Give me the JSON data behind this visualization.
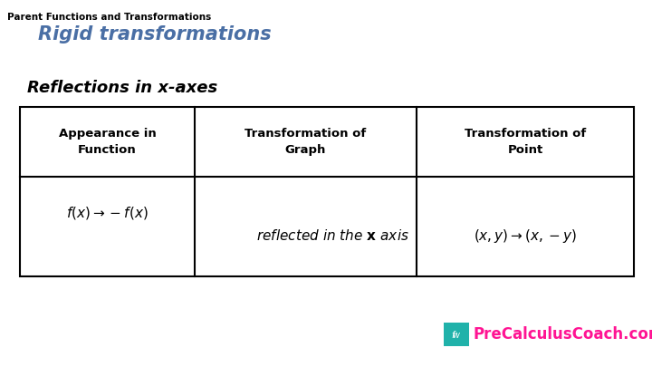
{
  "title_small": "Parent Functions and Transformations",
  "title_large": "Rigid transformations",
  "section_title": "Reflections in x-axes",
  "col_headers_line1": [
    "Appearance in",
    "Transformation of",
    "Transformation of"
  ],
  "col_headers_line2": [
    "Function",
    "Graph",
    "Point"
  ],
  "bg_color": "#ffffff",
  "title_small_color": "#000000",
  "title_large_color": "#4a6fa5",
  "section_title_color": "#000000",
  "header_text_color": "#000000",
  "row_text_color": "#000000",
  "table_line_color": "#000000",
  "brand_color": "#ff1493",
  "brand_icon_color": "#20b2aa",
  "title_small_fontsize": 7.5,
  "title_large_fontsize": 15,
  "section_title_fontsize": 13,
  "header_fontsize": 9.5,
  "cell_fontsize": 11,
  "brand_fontsize": 12
}
